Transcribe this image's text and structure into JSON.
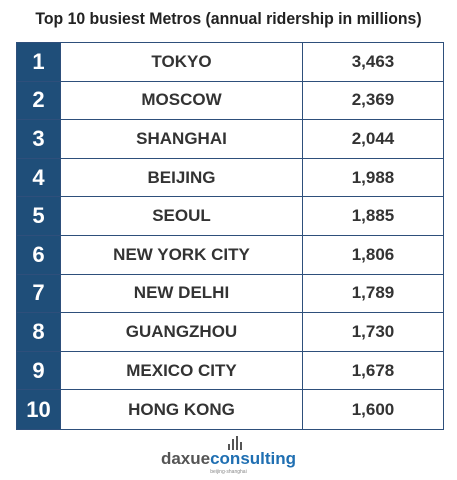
{
  "chart_data": {
    "type": "table",
    "title": "Top 10 busiest Metros (annual ridership in millions)",
    "rows": [
      {
        "rank": "1",
        "city": "TOKYO",
        "value": "3,463"
      },
      {
        "rank": "2",
        "city": "MOSCOW",
        "value": "2,369"
      },
      {
        "rank": "3",
        "city": "SHANGHAI",
        "value": "2,044"
      },
      {
        "rank": "4",
        "city": "BEIJING",
        "value": "1,988"
      },
      {
        "rank": "5",
        "city": "SEOUL",
        "value": "1,885"
      },
      {
        "rank": "6",
        "city": "NEW YORK CITY",
        "value": "1,806"
      },
      {
        "rank": "7",
        "city": "NEW DELHI",
        "value": "1,789"
      },
      {
        "rank": "8",
        "city": "GUANGZHOU",
        "value": "1,730"
      },
      {
        "rank": "9",
        "city": "MEXICO CITY",
        "value": "1,678"
      },
      {
        "rank": "10",
        "city": "HONG KONG",
        "value": "1,600"
      }
    ]
  },
  "logo": {
    "part1": "daxue",
    "part2": "consulting",
    "tagline": "beijing·shanghai"
  },
  "colors": {
    "rank_bg": "#1f4e79",
    "border": "#2e4f7b",
    "logo_blue": "#1f6fb2"
  }
}
